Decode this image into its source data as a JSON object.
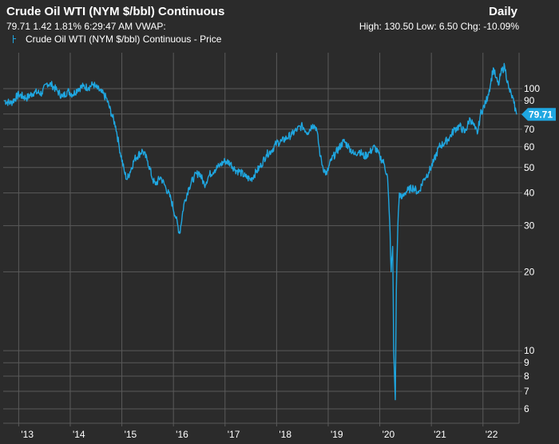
{
  "header": {
    "title": "Crude Oil WTI (NYM $/bbl) Continuous",
    "period": "Daily",
    "stats": "79.71  1.42  1.81%  6:29:47 AM VWAP:",
    "hilo": "High: 130.50  Low: 6.50  Chg: -10.09%",
    "legend": "Crude Oil WTI (NYM $/bbl) Continuous - Price"
  },
  "colors": {
    "background": "#2b2b2b",
    "grid": "#5a5a5a",
    "line": "#1fa7e1"
  },
  "chart_data": {
    "type": "line",
    "title": "Crude Oil WTI (NYM $/bbl) Continuous",
    "yscale": "log",
    "ylim": [
      6,
      130.5
    ],
    "xlim": [
      2012.7,
      2022.7
    ],
    "y_ticks": [
      6,
      7,
      8,
      9,
      10,
      20,
      30,
      40,
      50,
      60,
      70,
      80,
      90,
      100
    ],
    "y_tick_labels": [
      "6",
      "7",
      "8",
      "9",
      "10",
      "20",
      "30",
      "40",
      "50",
      "60",
      "70",
      "80",
      "90",
      "100"
    ],
    "x_ticks": [
      2013,
      2014,
      2015,
      2016,
      2017,
      2018,
      2019,
      2020,
      2021,
      2022
    ],
    "x_tick_labels": [
      "'13",
      "'14",
      "'15",
      "'16",
      "'17",
      "'18",
      "'19",
      "'20",
      "'21",
      "'22"
    ],
    "grid": true,
    "last_value": 79.71,
    "last_label": "79.71",
    "series": [
      {
        "name": "Crude Oil WTI (NYM $/bbl) Continuous - Price",
        "x": [
          2012.72,
          2012.85,
          2013.0,
          2013.15,
          2013.3,
          2013.45,
          2013.55,
          2013.65,
          2013.75,
          2013.85,
          2013.95,
          2014.05,
          2014.15,
          2014.25,
          2014.35,
          2014.45,
          2014.5,
          2014.6,
          2014.7,
          2014.8,
          2014.88,
          2014.95,
          2015.05,
          2015.1,
          2015.25,
          2015.4,
          2015.5,
          2015.6,
          2015.65,
          2015.75,
          2015.85,
          2015.95,
          2016.05,
          2016.12,
          2016.2,
          2016.3,
          2016.4,
          2016.5,
          2016.6,
          2016.7,
          2016.8,
          2016.9,
          2017.0,
          2017.1,
          2017.2,
          2017.3,
          2017.4,
          2017.5,
          2017.6,
          2017.7,
          2017.8,
          2017.9,
          2018.0,
          2018.1,
          2018.2,
          2018.3,
          2018.4,
          2018.5,
          2018.6,
          2018.7,
          2018.77,
          2018.85,
          2018.9,
          2018.97,
          2019.05,
          2019.15,
          2019.3,
          2019.4,
          2019.5,
          2019.6,
          2019.7,
          2019.8,
          2019.9,
          2020.0,
          2020.08,
          2020.15,
          2020.2,
          2020.22,
          2020.25,
          2020.27,
          2020.3,
          2020.32,
          2020.35,
          2020.38,
          2020.42,
          2020.48,
          2020.55,
          2020.65,
          2020.75,
          2020.85,
          2020.95,
          2021.05,
          2021.15,
          2021.25,
          2021.35,
          2021.45,
          2021.55,
          2021.65,
          2021.75,
          2021.85,
          2021.9,
          2021.95,
          2022.05,
          2022.1,
          2022.15,
          2022.2,
          2022.25,
          2022.3,
          2022.35,
          2022.42,
          2022.5,
          2022.55,
          2022.6,
          2022.65
        ],
        "values": [
          90,
          88,
          95,
          92,
          97,
          96,
          105,
          103,
          98,
          93,
          98,
          95,
          100,
          102,
          101,
          104,
          101,
          97,
          92,
          80,
          72,
          60,
          48,
          45,
          54,
          58,
          53,
          45,
          43,
          46,
          42,
          38,
          32,
          28,
          36,
          42,
          46,
          48,
          43,
          47,
          49,
          51,
          53,
          52,
          49,
          48,
          46,
          45,
          48,
          51,
          56,
          58,
          62,
          63,
          65,
          67,
          70,
          72,
          68,
          73,
          71,
          55,
          50,
          47,
          53,
          57,
          63,
          60,
          56,
          58,
          55,
          57,
          60,
          55,
          52,
          46,
          28,
          20,
          25,
          10,
          6.5,
          17,
          30,
          40,
          38,
          40,
          41,
          42,
          40,
          45,
          48,
          53,
          60,
          62,
          65,
          70,
          72,
          68,
          77,
          70,
          68,
          80,
          88,
          95,
          105,
          120,
          110,
          103,
          115,
          122,
          100,
          95,
          88,
          79.71
        ]
      }
    ]
  }
}
